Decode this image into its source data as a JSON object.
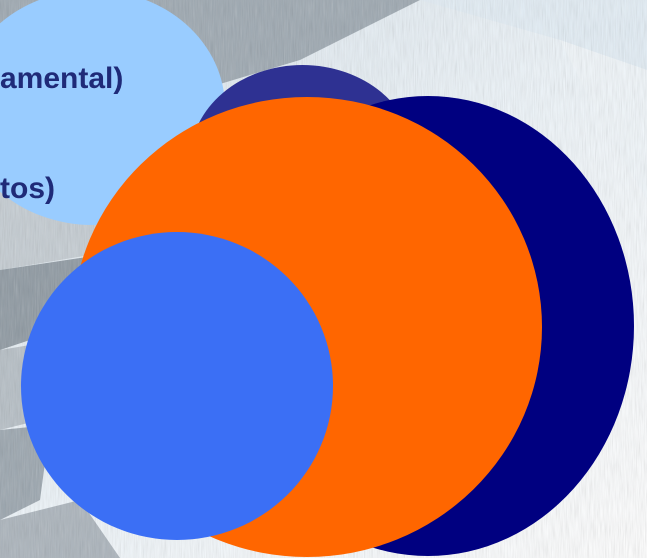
{
  "slide": {
    "labels": {
      "line1": "amental)",
      "line2": "tos)"
    },
    "colors": {
      "light_blue_circle": "#99ccff",
      "navy_circle": "#000080",
      "navy_back_circle": "#2e3192",
      "orange_circle": "#ff6600",
      "blue_circle": "#3b6ff5",
      "label_text": "#1f2a78",
      "background_sky": "#e9f4fb",
      "background_rock": "#a7b1ba"
    }
  }
}
